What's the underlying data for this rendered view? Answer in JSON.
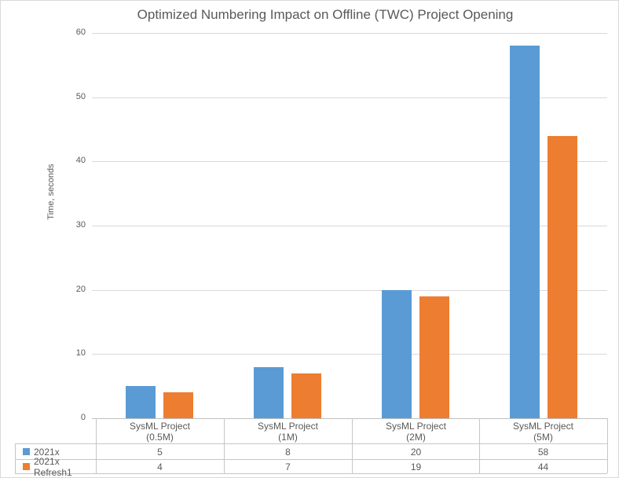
{
  "chart_data": {
    "type": "bar",
    "title": "Optimized Numbering Impact on Offline (TWC) Project Opening",
    "ylabel": "Time, seconds",
    "xlabel": "",
    "categories": [
      {
        "line1": "SysML Project",
        "line2": "(0.5M)"
      },
      {
        "line1": "SysML Project",
        "line2": "(1M)"
      },
      {
        "line1": "SysML Project",
        "line2": "(2M)"
      },
      {
        "line1": "SysML Project",
        "line2": "(5M)"
      }
    ],
    "series": [
      {
        "name": "2021x",
        "color": "#5B9BD5",
        "values": [
          5,
          8,
          20,
          58
        ]
      },
      {
        "name": "2021x Refresh1",
        "color": "#ED7D31",
        "values": [
          4,
          7,
          19,
          44
        ]
      }
    ],
    "ylim": [
      0,
      60
    ],
    "yticks": [
      0,
      10,
      20,
      30,
      40,
      50,
      60
    ],
    "grid": true,
    "legend_position": "data-table-left",
    "data_table_shown": true
  },
  "colors": {
    "text": "#595959",
    "gridline": "#D9D9D9",
    "axis_line": "#BFBFBF",
    "table_border": "#C6C6C6",
    "chart_border": "#D9D9D9",
    "background": "#FFFFFF"
  }
}
